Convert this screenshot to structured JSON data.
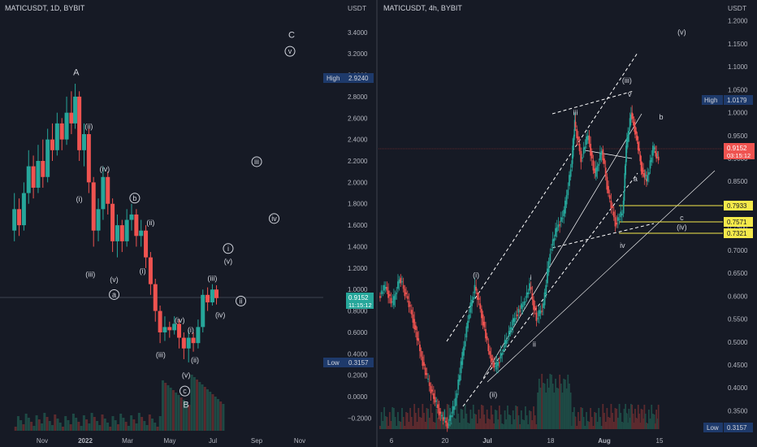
{
  "colors": {
    "background": "#161a25",
    "up": "#26a69a",
    "down": "#ef5350",
    "text": "#d1d4dc",
    "axis_text": "#b2b5be",
    "high_low_label": "#1e3a6b",
    "price_current": "#26a69a",
    "price_current_right": "#ef5350",
    "fib_line": "#f5e94a"
  },
  "chart_data": [
    {
      "type": "candlestick",
      "title": "MATICUSDT, 1D, BYBIT",
      "axis_unit": "USDT",
      "y_ticks": [
        "3.4000",
        "3.2000",
        "3.0000",
        "2.8000",
        "2.6000",
        "2.4000",
        "2.2000",
        "2.0000",
        "1.8000",
        "1.6000",
        "1.4000",
        "1.2000",
        "1.0000",
        "0.8000",
        "0.6000",
        "0.4000",
        "0.2000",
        "0.0000",
        "−0.2000"
      ],
      "x_ticks": [
        "Nov",
        "2022",
        "Mar",
        "May",
        "Jul",
        "Sep",
        "Nov"
      ],
      "high_label": "High",
      "high_value": "2.9240",
      "low_label": "Low",
      "low_value": "0.3157",
      "current_price": "0.9152",
      "countdown": "11:15:12",
      "ylim": [
        -0.28,
        3.55
      ],
      "wave_labels": [
        {
          "text": "A",
          "price": 3.0,
          "t": 0.225,
          "style": "plain-large"
        },
        {
          "text": "(ii)",
          "price": 2.5,
          "t": 0.265,
          "style": "plain"
        },
        {
          "text": "(iv)",
          "price": 2.1,
          "t": 0.315,
          "style": "plain"
        },
        {
          "text": "(i)",
          "price": 1.82,
          "t": 0.235,
          "style": "plain"
        },
        {
          "text": "b",
          "price": 1.83,
          "t": 0.41,
          "style": "circle"
        },
        {
          "text": "(ii)",
          "price": 1.6,
          "t": 0.46,
          "style": "plain"
        },
        {
          "text": "(iii)",
          "price": 1.12,
          "t": 0.27,
          "style": "plain"
        },
        {
          "text": "(v)",
          "price": 1.07,
          "t": 0.345,
          "style": "plain"
        },
        {
          "text": "(i)",
          "price": 1.15,
          "t": 0.435,
          "style": "plain"
        },
        {
          "text": "a",
          "price": 0.93,
          "t": 0.345,
          "style": "circle"
        },
        {
          "text": "(iv)",
          "price": 0.69,
          "t": 0.552,
          "style": "plain"
        },
        {
          "text": "(i)",
          "price": 0.6,
          "t": 0.587,
          "style": "plain"
        },
        {
          "text": "(iii)",
          "price": 0.37,
          "t": 0.492,
          "style": "plain"
        },
        {
          "text": "(ii)",
          "price": 0.32,
          "t": 0.6,
          "style": "plain"
        },
        {
          "text": "(v)",
          "price": 0.18,
          "t": 0.572,
          "style": "plain"
        },
        {
          "text": "c",
          "price": 0.03,
          "t": 0.568,
          "style": "circle"
        },
        {
          "text": "B",
          "price": -0.1,
          "t": 0.572,
          "style": "plain-large"
        },
        {
          "text": "(iii)",
          "price": 1.08,
          "t": 0.655,
          "style": "plain"
        },
        {
          "text": "(iv)",
          "price": 0.74,
          "t": 0.68,
          "style": "plain"
        },
        {
          "text": "(v)",
          "price": 1.24,
          "t": 0.705,
          "style": "plain"
        },
        {
          "text": "i",
          "price": 1.36,
          "t": 0.705,
          "style": "circle"
        },
        {
          "text": "ii",
          "price": 0.87,
          "t": 0.745,
          "style": "circle"
        },
        {
          "text": "iii",
          "price": 2.17,
          "t": 0.795,
          "style": "circle"
        },
        {
          "text": "iv",
          "price": 1.64,
          "t": 0.85,
          "style": "circle"
        },
        {
          "text": "C",
          "price": 3.35,
          "t": 0.905,
          "style": "plain-large"
        },
        {
          "text": "v",
          "price": 3.2,
          "t": 0.9,
          "style": "circle"
        }
      ],
      "candles": [
        {
          "t": 0.03,
          "o": 1.55,
          "c": 1.75,
          "h": 1.9,
          "l": 1.45
        },
        {
          "t": 0.045,
          "o": 1.75,
          "c": 1.6,
          "h": 1.85,
          "l": 1.5
        },
        {
          "t": 0.06,
          "o": 1.6,
          "c": 1.9,
          "h": 2.0,
          "l": 1.55
        },
        {
          "t": 0.075,
          "o": 1.9,
          "c": 2.15,
          "h": 2.3,
          "l": 1.8
        },
        {
          "t": 0.09,
          "o": 2.15,
          "c": 1.95,
          "h": 2.25,
          "l": 1.85
        },
        {
          "t": 0.105,
          "o": 1.95,
          "c": 2.2,
          "h": 2.35,
          "l": 1.9
        },
        {
          "t": 0.12,
          "o": 2.2,
          "c": 2.05,
          "h": 2.4,
          "l": 1.95
        },
        {
          "t": 0.135,
          "o": 2.05,
          "c": 2.4,
          "h": 2.5,
          "l": 2.0
        },
        {
          "t": 0.15,
          "o": 2.4,
          "c": 2.3,
          "h": 2.55,
          "l": 2.2
        },
        {
          "t": 0.165,
          "o": 2.3,
          "c": 2.55,
          "h": 2.65,
          "l": 2.25
        },
        {
          "t": 0.18,
          "o": 2.55,
          "c": 2.4,
          "h": 2.6,
          "l": 2.3
        },
        {
          "t": 0.195,
          "o": 2.4,
          "c": 2.65,
          "h": 2.8,
          "l": 2.35
        },
        {
          "t": 0.21,
          "o": 2.65,
          "c": 2.55,
          "h": 2.85,
          "l": 2.45
        },
        {
          "t": 0.222,
          "o": 2.55,
          "c": 2.8,
          "h": 2.92,
          "l": 2.5
        },
        {
          "t": 0.235,
          "o": 2.8,
          "c": 2.3,
          "h": 2.85,
          "l": 2.2
        },
        {
          "t": 0.25,
          "o": 2.3,
          "c": 2.45,
          "h": 2.55,
          "l": 2.15
        },
        {
          "t": 0.265,
          "o": 2.45,
          "c": 2.0,
          "h": 2.5,
          "l": 1.9
        },
        {
          "t": 0.28,
          "o": 2.0,
          "c": 1.55,
          "h": 2.05,
          "l": 1.4
        },
        {
          "t": 0.295,
          "o": 1.55,
          "c": 1.75,
          "h": 1.85,
          "l": 1.45
        },
        {
          "t": 0.31,
          "o": 1.75,
          "c": 2.05,
          "h": 2.15,
          "l": 1.65
        },
        {
          "t": 0.325,
          "o": 2.05,
          "c": 1.8,
          "h": 2.1,
          "l": 1.7
        },
        {
          "t": 0.34,
          "o": 1.8,
          "c": 1.45,
          "h": 1.85,
          "l": 1.35
        },
        {
          "t": 0.355,
          "o": 1.45,
          "c": 1.6,
          "h": 1.7,
          "l": 1.3
        },
        {
          "t": 0.37,
          "o": 1.6,
          "c": 1.45,
          "h": 1.65,
          "l": 1.35
        },
        {
          "t": 0.385,
          "o": 1.45,
          "c": 1.65,
          "h": 1.75,
          "l": 1.4
        },
        {
          "t": 0.4,
          "o": 1.65,
          "c": 1.7,
          "h": 1.8,
          "l": 1.55
        },
        {
          "t": 0.415,
          "o": 1.7,
          "c": 1.5,
          "h": 1.75,
          "l": 1.4
        },
        {
          "t": 0.43,
          "o": 1.5,
          "c": 1.55,
          "h": 1.65,
          "l": 1.4
        },
        {
          "t": 0.445,
          "o": 1.55,
          "c": 1.3,
          "h": 1.6,
          "l": 1.2
        },
        {
          "t": 0.46,
          "o": 1.3,
          "c": 1.05,
          "h": 1.35,
          "l": 0.95
        },
        {
          "t": 0.475,
          "o": 1.05,
          "c": 0.8,
          "h": 1.1,
          "l": 0.7
        },
        {
          "t": 0.49,
          "o": 0.8,
          "c": 0.6,
          "h": 0.85,
          "l": 0.5
        },
        {
          "t": 0.505,
          "o": 0.6,
          "c": 0.65,
          "h": 0.75,
          "l": 0.52
        },
        {
          "t": 0.52,
          "o": 0.65,
          "c": 0.62,
          "h": 0.7,
          "l": 0.55
        },
        {
          "t": 0.535,
          "o": 0.62,
          "c": 0.68,
          "h": 0.75,
          "l": 0.58
        },
        {
          "t": 0.55,
          "o": 0.68,
          "c": 0.55,
          "h": 0.72,
          "l": 0.45
        },
        {
          "t": 0.565,
          "o": 0.55,
          "c": 0.45,
          "h": 0.6,
          "l": 0.35
        },
        {
          "t": 0.58,
          "o": 0.45,
          "c": 0.55,
          "h": 0.62,
          "l": 0.32
        },
        {
          "t": 0.595,
          "o": 0.55,
          "c": 0.5,
          "h": 0.6,
          "l": 0.42
        },
        {
          "t": 0.61,
          "o": 0.5,
          "c": 0.65,
          "h": 0.72,
          "l": 0.45
        },
        {
          "t": 0.625,
          "o": 0.65,
          "c": 0.95,
          "h": 1.0,
          "l": 0.6
        },
        {
          "t": 0.64,
          "o": 0.95,
          "c": 0.88,
          "h": 1.02,
          "l": 0.8
        },
        {
          "t": 0.655,
          "o": 0.88,
          "c": 1.0,
          "h": 1.05,
          "l": 0.85
        },
        {
          "t": 0.668,
          "o": 1.0,
          "c": 0.92,
          "h": 1.04,
          "l": 0.86
        }
      ]
    },
    {
      "type": "candlestick",
      "title": "MATICUSDT, 4h, BYBIT",
      "axis_unit": "USDT",
      "y_ticks": [
        "1.2000",
        "1.1500",
        "1.1000",
        "1.0500",
        "1.0000",
        "0.9500",
        "0.9000",
        "0.8500",
        "0.8000",
        "0.7500",
        "0.7000",
        "0.6500",
        "0.6000",
        "0.5500",
        "0.5000",
        "0.4500",
        "0.4000",
        "0.3500"
      ],
      "x_ticks": [
        "6",
        "20",
        "Jul",
        "18",
        "Aug",
        "15"
      ],
      "high_label": "High",
      "high_value": "1.0179",
      "low_label": "Low",
      "low_value": "0.3157",
      "current_price": "0.9152",
      "countdown": "03:15:12",
      "fib_levels": [
        "0.7933",
        "0.7571",
        "0.7321"
      ],
      "ylim": [
        0.31,
        1.21
      ],
      "wave_labels": [
        {
          "text": "(v)",
          "price": 1.17,
          "t": 0.88
        },
        {
          "text": "(iii)",
          "price": 1.065,
          "t": 0.72
        },
        {
          "text": "iii",
          "price": 0.995,
          "t": 0.57
        },
        {
          "text": "v",
          "price": 1.035,
          "t": 0.728
        },
        {
          "text": "b",
          "price": 0.985,
          "t": 0.82
        },
        {
          "text": "a",
          "price": 0.85,
          "t": 0.745
        },
        {
          "text": "c",
          "price": 0.765,
          "t": 0.88
        },
        {
          "text": "(iv)",
          "price": 0.745,
          "t": 0.88
        },
        {
          "text": "iv",
          "price": 0.705,
          "t": 0.707
        },
        {
          "text": "(i)",
          "price": 0.64,
          "t": 0.28
        },
        {
          "text": "i",
          "price": 0.635,
          "t": 0.44
        },
        {
          "text": "ii",
          "price": 0.49,
          "t": 0.45
        },
        {
          "text": "(ii)",
          "price": 0.38,
          "t": 0.33
        }
      ]
    }
  ]
}
